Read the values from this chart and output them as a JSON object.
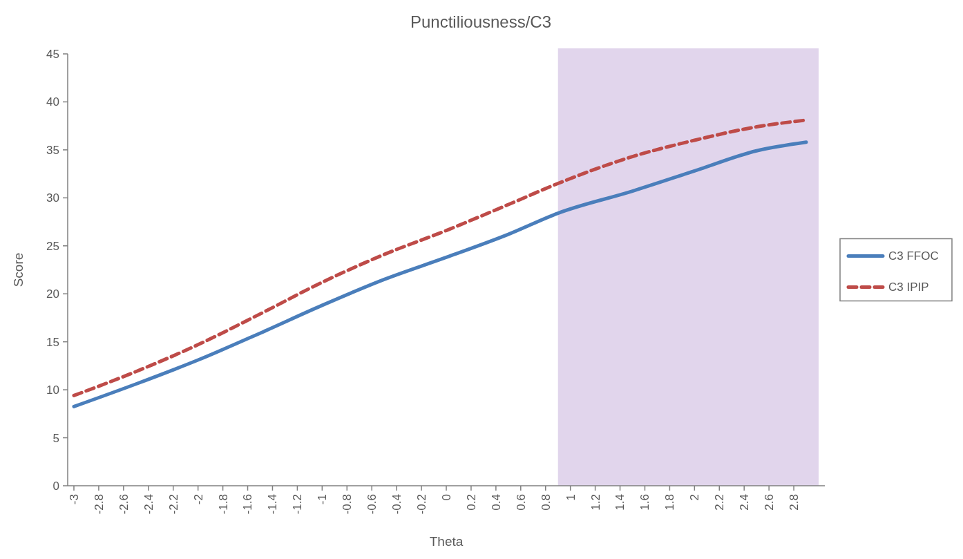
{
  "chart_data": {
    "type": "line",
    "title": "Punctiliousness/C3",
    "xlabel": "Theta",
    "ylabel": "Score",
    "xlim": [
      -3.05,
      3.05
    ],
    "xticks": [
      -3,
      -2.8,
      -2.6,
      -2.4,
      -2.2,
      -2,
      -1.8,
      -1.6,
      -1.4,
      -1.2,
      -1,
      -0.8,
      -0.6,
      -0.4,
      -0.2,
      0,
      0.2,
      0.4,
      0.6,
      0.8,
      1,
      1.2,
      1.4,
      1.6,
      1.8,
      2,
      2.2,
      2.4,
      2.6,
      2.8
    ],
    "ylim": [
      0,
      45
    ],
    "yticks": [
      0,
      5,
      10,
      15,
      20,
      25,
      30,
      35,
      40,
      45
    ],
    "x": [
      -3,
      -2.5,
      -2,
      -1.5,
      -1,
      -0.5,
      0,
      0.5,
      0.9,
      1.5,
      2,
      2.5,
      2.9
    ],
    "series": [
      {
        "name": "C3 FFOC",
        "color": "#4a7ebb",
        "line_style": "solid",
        "values": [
          8.25,
          10.6,
          13.1,
          15.9,
          18.8,
          21.5,
          23.8,
          26.2,
          28.4,
          30.7,
          32.8,
          34.9,
          35.8
        ]
      },
      {
        "name": "C3 IPIP",
        "color": "#be4b48",
        "line_style": "dashed",
        "values": [
          9.4,
          11.9,
          14.7,
          17.9,
          21.2,
          24.1,
          26.6,
          29.3,
          31.5,
          34.3,
          36.0,
          37.4,
          38.1
        ]
      }
    ],
    "bands": [
      {
        "axis": "x",
        "from": 0.9,
        "to": 3.0,
        "color": "#e1d5ec"
      }
    ],
    "legend": "right",
    "grid": false,
    "marker": "none"
  }
}
